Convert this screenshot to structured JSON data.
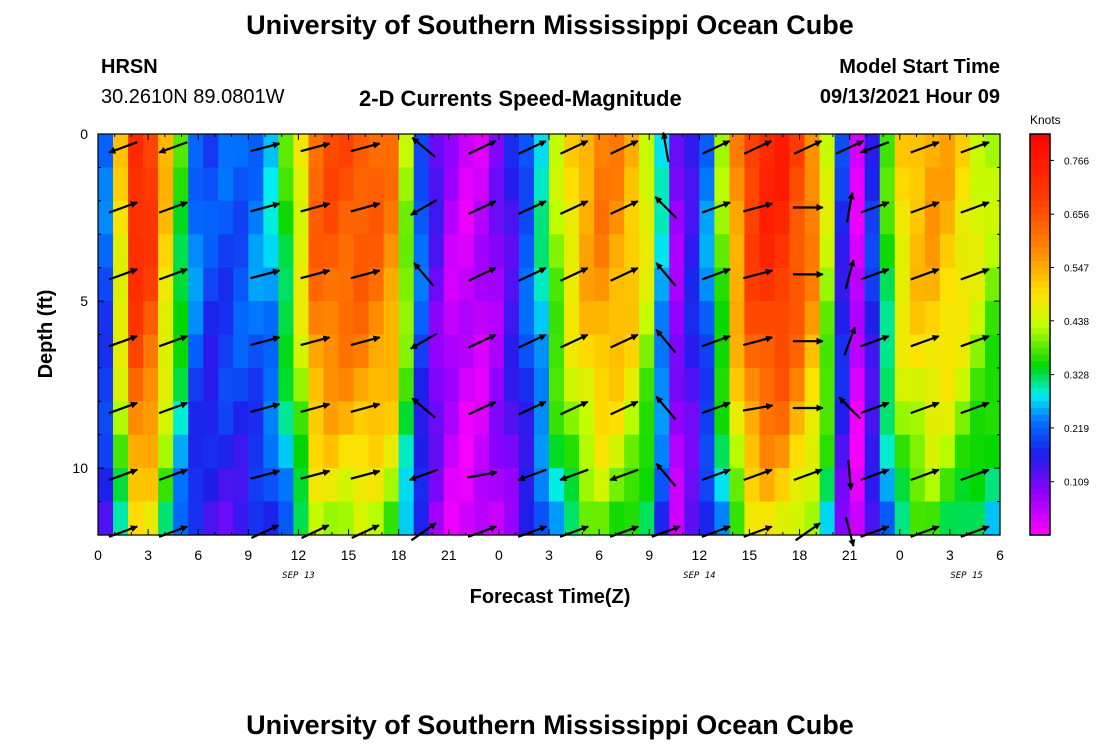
{
  "header": {
    "top_title": "University of Southern Mississippi Ocean Cube",
    "station_name": "HRSN",
    "coordinates": "30.2610N  89.0801W",
    "plot_title": "2-D Currents Speed-Magnitude",
    "model_start_label": "Model Start Time",
    "model_start_value": "09/13/2021 Hour 09",
    "bottom_title": "University of Southern Mississippi Ocean Cube"
  },
  "chart_data": {
    "type": "heatmap",
    "title": "2-D Currents Speed-Magnitude",
    "xlabel": "Forecast Time(Z)",
    "ylabel": "Depth (ft)",
    "x_tick_labels": [
      "0",
      "3",
      "6",
      "9",
      "12",
      "15",
      "18",
      "21",
      "0",
      "3",
      "6",
      "9",
      "12",
      "15",
      "18",
      "21",
      "0",
      "3",
      "6"
    ],
    "x_range_hours": [
      0,
      54
    ],
    "date_labels": [
      {
        "label": "SEP 13",
        "hour": 12
      },
      {
        "label": "SEP 14",
        "hour": 36
      },
      {
        "label": "SEP 15",
        "hour": 52
      }
    ],
    "y_ticks": [
      0,
      5,
      10
    ],
    "y_range_ft": [
      0,
      12
    ],
    "colorbar": {
      "title": "Knots",
      "ticks": [
        "0.766",
        "0.656",
        "0.547",
        "0.438",
        "0.328",
        "0.219",
        "0.109"
      ],
      "range": [
        0.0,
        0.82
      ]
    },
    "column_speeds_knots": [
      0.22,
      0.5,
      0.74,
      0.7,
      0.52,
      0.36,
      0.24,
      0.2,
      0.21,
      0.22,
      0.24,
      0.27,
      0.36,
      0.48,
      0.64,
      0.66,
      0.66,
      0.66,
      0.64,
      0.6,
      0.42,
      0.22,
      0.12,
      0.06,
      0.04,
      0.05,
      0.09,
      0.15,
      0.22,
      0.3,
      0.42,
      0.5,
      0.56,
      0.6,
      0.58,
      0.54,
      0.46,
      0.28,
      0.09,
      0.16,
      0.24,
      0.4,
      0.58,
      0.7,
      0.74,
      0.74,
      0.68,
      0.6,
      0.44,
      0.18,
      0.04,
      0.18,
      0.36,
      0.5,
      0.54,
      0.56,
      0.54,
      0.5,
      0.46,
      0.42
    ],
    "arrow_rows_ft": [
      0.4,
      2.2,
      4.2,
      6.2,
      8.2,
      10.2,
      11.9
    ],
    "arrow_columns_hour": [
      1.5,
      4.5,
      10,
      13,
      16,
      19.5,
      23,
      26,
      28.5,
      31.5,
      34,
      37,
      39.5,
      42.5,
      45,
      46.5,
      49.5,
      52.5
    ],
    "arrow_direction_deg": [
      [
        200,
        200,
        15,
        15,
        15,
        140,
        25,
        25,
        25,
        25,
        100,
        25,
        25,
        25,
        25,
        200,
        20,
        20
      ],
      [
        20,
        20,
        15,
        15,
        15,
        210,
        25,
        25,
        25,
        25,
        135,
        20,
        15,
        0,
        80,
        20,
        20,
        20
      ],
      [
        20,
        20,
        15,
        15,
        15,
        130,
        25,
        25,
        25,
        25,
        130,
        20,
        15,
        0,
        75,
        20,
        20,
        20
      ],
      [
        20,
        20,
        15,
        15,
        15,
        210,
        25,
        25,
        25,
        25,
        130,
        20,
        15,
        0,
        70,
        20,
        20,
        20
      ],
      [
        20,
        20,
        15,
        15,
        15,
        140,
        25,
        25,
        25,
        25,
        130,
        20,
        10,
        0,
        135,
        20,
        20,
        20
      ],
      [
        20,
        20,
        15,
        15,
        15,
        200,
        10,
        200,
        200,
        200,
        130,
        20,
        20,
        20,
        275,
        20,
        20,
        20
      ],
      [
        20,
        20,
        25,
        25,
        25,
        35,
        20,
        20,
        20,
        20,
        20,
        20,
        20,
        35,
        285,
        20,
        20,
        20
      ]
    ]
  }
}
